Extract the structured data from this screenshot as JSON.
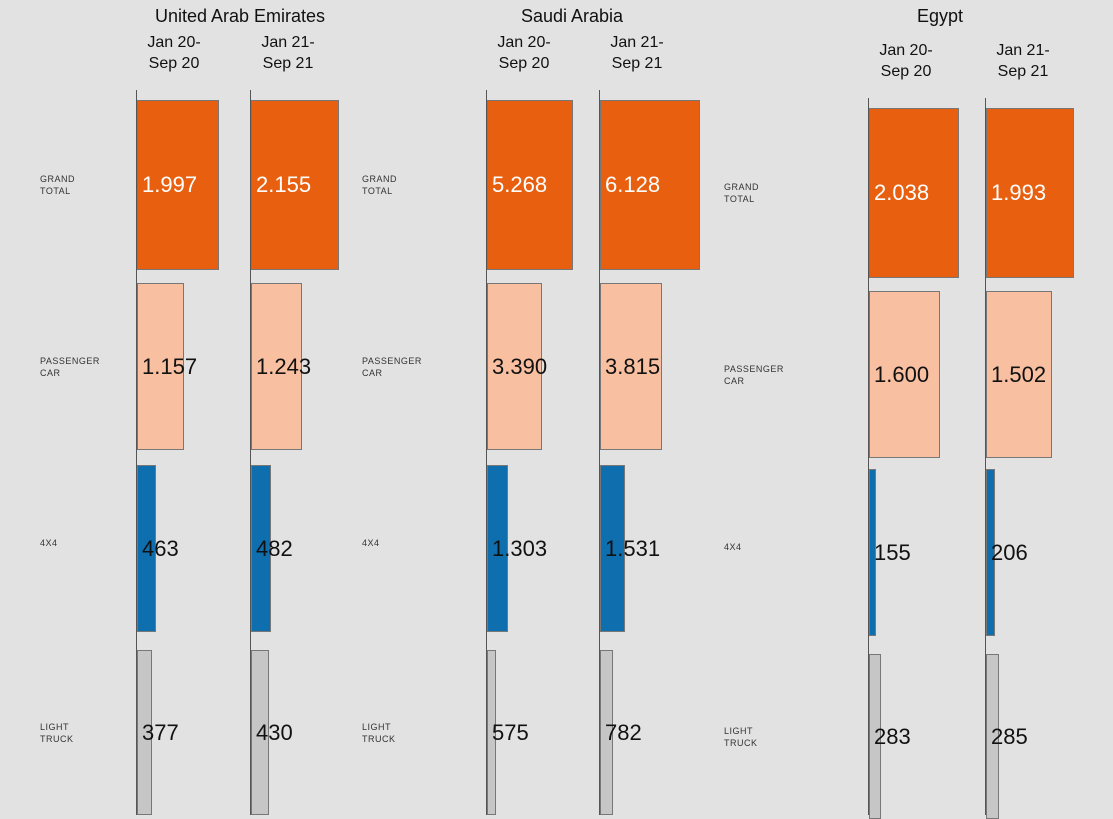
{
  "chart_data": [
    {
      "type": "bar",
      "orientation": "horizontal",
      "title": "United Arab Emirates",
      "categories": [
        "GRAND TOTAL",
        "PASSENGER CAR",
        "4X4",
        "LIGHT TRUCK"
      ],
      "colors": [
        "#e8600f",
        "#f8bfa0",
        "#0f6fae",
        "#c6c6c6"
      ],
      "value_label_colors": [
        "#ffffff",
        "#111111",
        "#111111",
        "#111111"
      ],
      "series": [
        {
          "name": "Jan 20- Sep 20",
          "values": [
            1997,
            1157,
            463,
            377
          ],
          "value_labels": [
            "1.997",
            "1.157",
            "463",
            "377"
          ]
        },
        {
          "name": "Jan 21- Sep 21",
          "values": [
            2155,
            1243,
            482,
            430
          ],
          "value_labels": [
            "2.155",
            "1.243",
            "482",
            "430"
          ]
        }
      ]
    },
    {
      "type": "bar",
      "orientation": "horizontal",
      "title": "Saudi Arabia",
      "categories": [
        "GRAND TOTAL",
        "PASSENGER CAR",
        "4X4",
        "LIGHT TRUCK"
      ],
      "colors": [
        "#e8600f",
        "#f8bfa0",
        "#0f6fae",
        "#c6c6c6"
      ],
      "value_label_colors": [
        "#ffffff",
        "#111111",
        "#111111",
        "#111111"
      ],
      "series": [
        {
          "name": "Jan 20- Sep 20",
          "values": [
            5268,
            3390,
            1303,
            575
          ],
          "value_labels": [
            "5.268",
            "3.390",
            "1.303",
            "575"
          ]
        },
        {
          "name": "Jan 21- Sep 21",
          "values": [
            6128,
            3815,
            1531,
            782
          ],
          "value_labels": [
            "6.128",
            "3.815",
            "1.531",
            "782"
          ]
        }
      ]
    },
    {
      "type": "bar",
      "orientation": "horizontal",
      "title": "Egypt",
      "categories": [
        "GRAND TOTAL",
        "PASSENGER CAR",
        "4X4",
        "LIGHT TRUCK"
      ],
      "colors": [
        "#e8600f",
        "#f8bfa0",
        "#0f6fae",
        "#c6c6c6"
      ],
      "value_label_colors": [
        "#ffffff",
        "#111111",
        "#111111",
        "#111111"
      ],
      "series": [
        {
          "name": "Jan 20- Sep 20",
          "values": [
            2038,
            1600,
            155,
            283
          ],
          "value_labels": [
            "2.038",
            "1.600",
            "155",
            "283"
          ]
        },
        {
          "name": "Jan 21- Sep 21",
          "values": [
            1993,
            1502,
            206,
            285
          ],
          "value_labels": [
            "1.993",
            "1.502",
            "206",
            "285"
          ]
        }
      ]
    }
  ]
}
